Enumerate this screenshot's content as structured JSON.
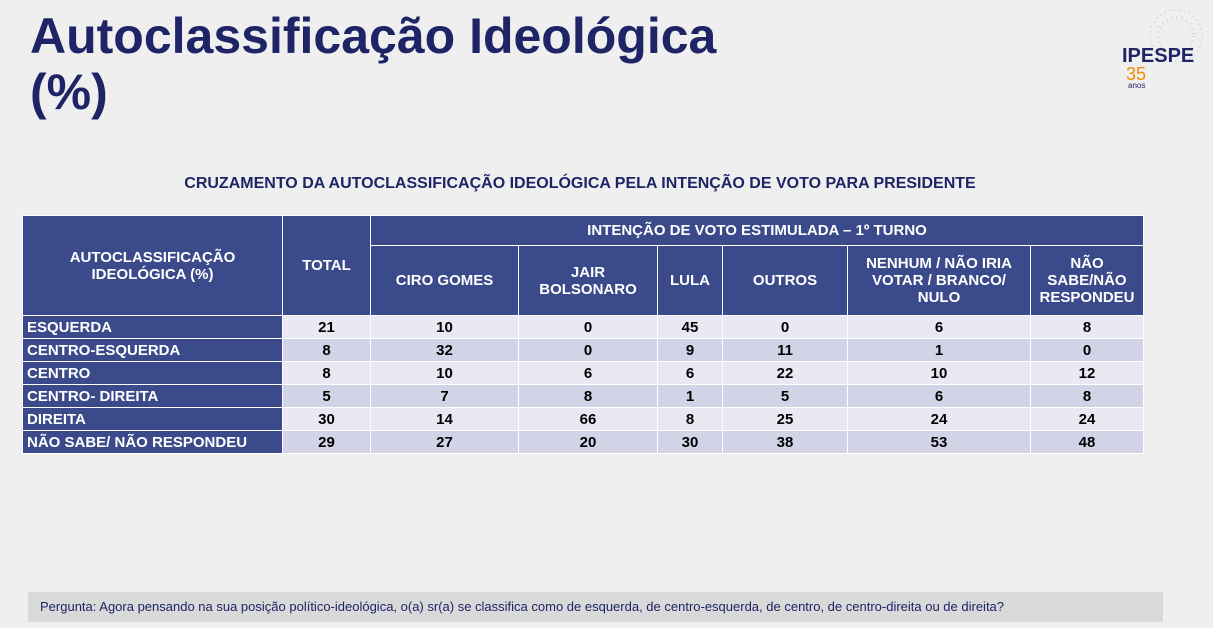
{
  "header": {
    "title": "Autoclassificação Ideológica (%)",
    "logo": {
      "name": "IPESPE",
      "number": "35",
      "unit": "anos"
    }
  },
  "subtitle": "CRUZAMENTO DA AUTOCLASSIFICAÇÃO IDEOLÓGICA PELA INTENÇÃO DE VOTO PARA PRESIDENTE",
  "table": {
    "row_header": "AUTOCLASSIFICAÇÃO IDEOLÓGICA (%)",
    "total_header": "TOTAL",
    "group_header": "INTENÇÃO DE VOTO ESTIMULADA – 1º TURNO",
    "columns": [
      "CIRO GOMES",
      "JAIR BOLSONARO",
      "LULA",
      "OUTROS",
      "NENHUM / NÃO IRIA VOTAR / BRANCO/ NULO",
      "NÃO SABE/NÃO RESPONDEU"
    ],
    "rows": [
      {
        "label": "ESQUERDA",
        "values": [
          21,
          10,
          0,
          45,
          0,
          6,
          8
        ]
      },
      {
        "label": "CENTRO-ESQUERDA",
        "values": [
          8,
          32,
          0,
          9,
          11,
          1,
          0
        ]
      },
      {
        "label": "CENTRO",
        "values": [
          8,
          10,
          6,
          6,
          22,
          10,
          12
        ]
      },
      {
        "label": "CENTRO- DIREITA",
        "values": [
          5,
          7,
          8,
          1,
          5,
          6,
          8
        ]
      },
      {
        "label": "DIREITA",
        "values": [
          30,
          14,
          66,
          8,
          25,
          24,
          24
        ]
      },
      {
        "label": "NÃO SABE/ NÃO RESPONDEU",
        "values": [
          29,
          27,
          20,
          30,
          38,
          53,
          48
        ]
      }
    ]
  },
  "footer": "Pergunta:  Agora pensando na sua posição político-ideológica, o(a) sr(a) se classifica como de esquerda, de centro-esquerda, de centro, de centro-direita ou de direita?"
}
